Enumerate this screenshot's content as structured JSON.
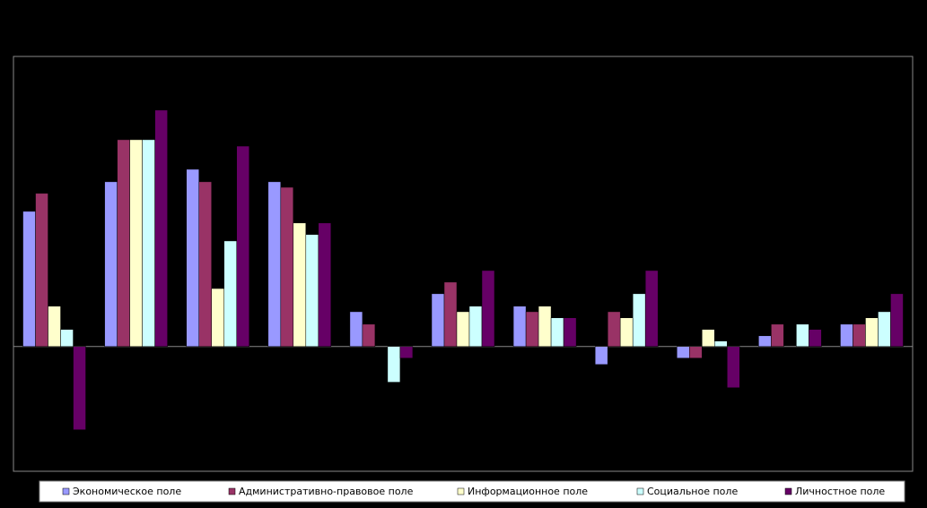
{
  "chart_data": {
    "type": "bar",
    "categories": [
      null,
      null,
      null,
      null,
      null,
      null,
      null,
      null,
      null,
      null,
      null
    ],
    "series": [
      {
        "name": "Экономическое поле",
        "color": "#9999ff",
        "values": [
          4.66,
          5.68,
          6.11,
          5.68,
          1.2,
          1.82,
          1.39,
          -0.62,
          -0.4,
          0.37,
          0.77
        ]
      },
      {
        "name": "Административно-правовое поле",
        "color": "#993366",
        "values": [
          5.28,
          7.13,
          5.68,
          5.49,
          0.77,
          2.22,
          1.2,
          1.2,
          -0.4,
          0.77,
          0.77
        ]
      },
      {
        "name": "Информационное поле",
        "color": "#ffffcc",
        "values": [
          1.39,
          7.13,
          2.0,
          4.26,
          0,
          1.2,
          1.39,
          0.99,
          0.59,
          0,
          0.99
        ]
      },
      {
        "name": "Социальное поле",
        "color": "#ccffff",
        "values": [
          0.59,
          7.13,
          3.64,
          3.86,
          -1.23,
          1.39,
          0.99,
          1.82,
          0.19,
          0.77,
          1.2
        ]
      },
      {
        "name": "Личностное поле",
        "color": "#660066",
        "values": [
          -2.87,
          8.15,
          6.91,
          4.26,
          -0.4,
          2.62,
          0.99,
          2.62,
          -1.42,
          0.59,
          1.82
        ]
      }
    ],
    "ylim": [
      -4.3,
      10
    ]
  }
}
